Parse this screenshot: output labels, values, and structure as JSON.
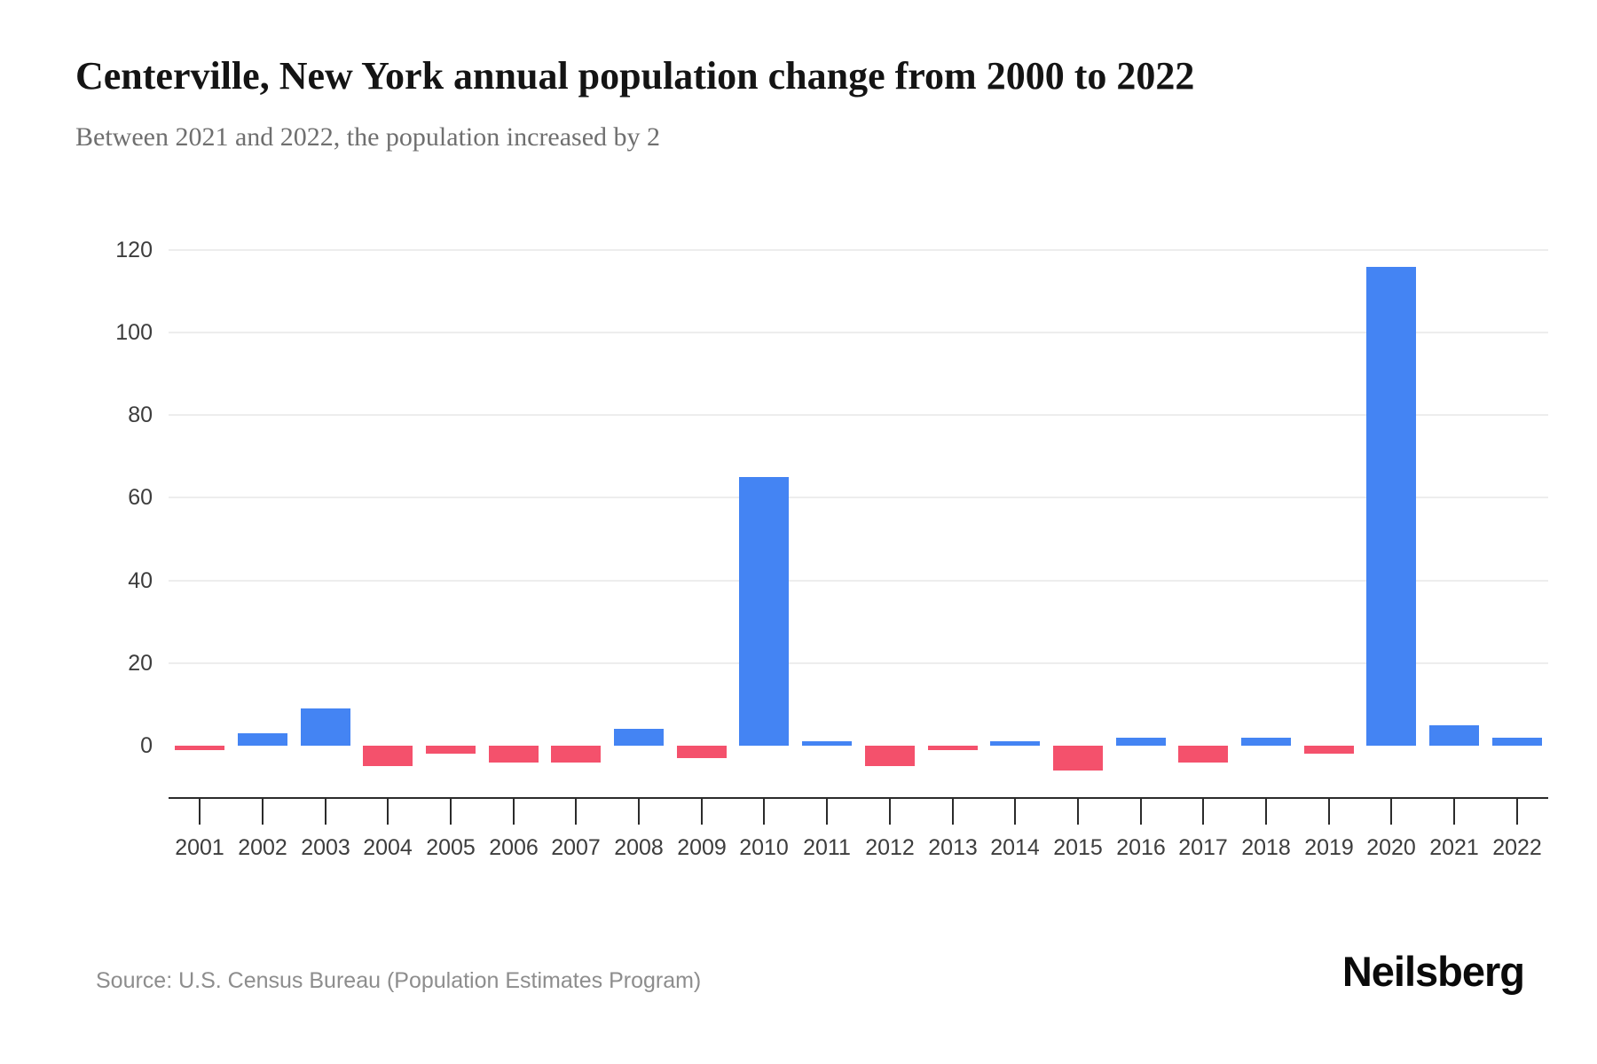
{
  "header": {
    "title": "Centerville, New York annual population change from 2000 to 2022",
    "subtitle": "Between 2021 and 2022, the population increased by 2"
  },
  "footer": {
    "source": "Source: U.S. Census Bureau (Population Estimates Program)",
    "brand": "Neilsberg"
  },
  "chart_data": {
    "type": "bar",
    "title": "Centerville, New York annual population change from 2000 to 2022",
    "subtitle": "Between 2021 and 2022, the population increased by 2",
    "categories": [
      "2001",
      "2002",
      "2003",
      "2004",
      "2005",
      "2006",
      "2007",
      "2008",
      "2009",
      "2010",
      "2011",
      "2012",
      "2013",
      "2014",
      "2015",
      "2016",
      "2017",
      "2018",
      "2019",
      "2020",
      "2021",
      "2022"
    ],
    "values": [
      -1,
      3,
      9,
      -5,
      -2,
      -4,
      -4,
      4,
      -3,
      65,
      1,
      -5,
      -1,
      1,
      -6,
      2,
      -4,
      2,
      -2,
      116,
      5,
      2
    ],
    "xlabel": "",
    "ylabel": "",
    "y_ticks": [
      0,
      20,
      40,
      60,
      80,
      100,
      120
    ],
    "ylim": [
      -12,
      128
    ],
    "grid": true,
    "legend": false,
    "colors": {
      "positive": "#4484f3",
      "negative": "#f4516c",
      "gridline": "#ededed",
      "axis": "#2b2b2b",
      "tick_label": "#3d3d3d"
    }
  }
}
